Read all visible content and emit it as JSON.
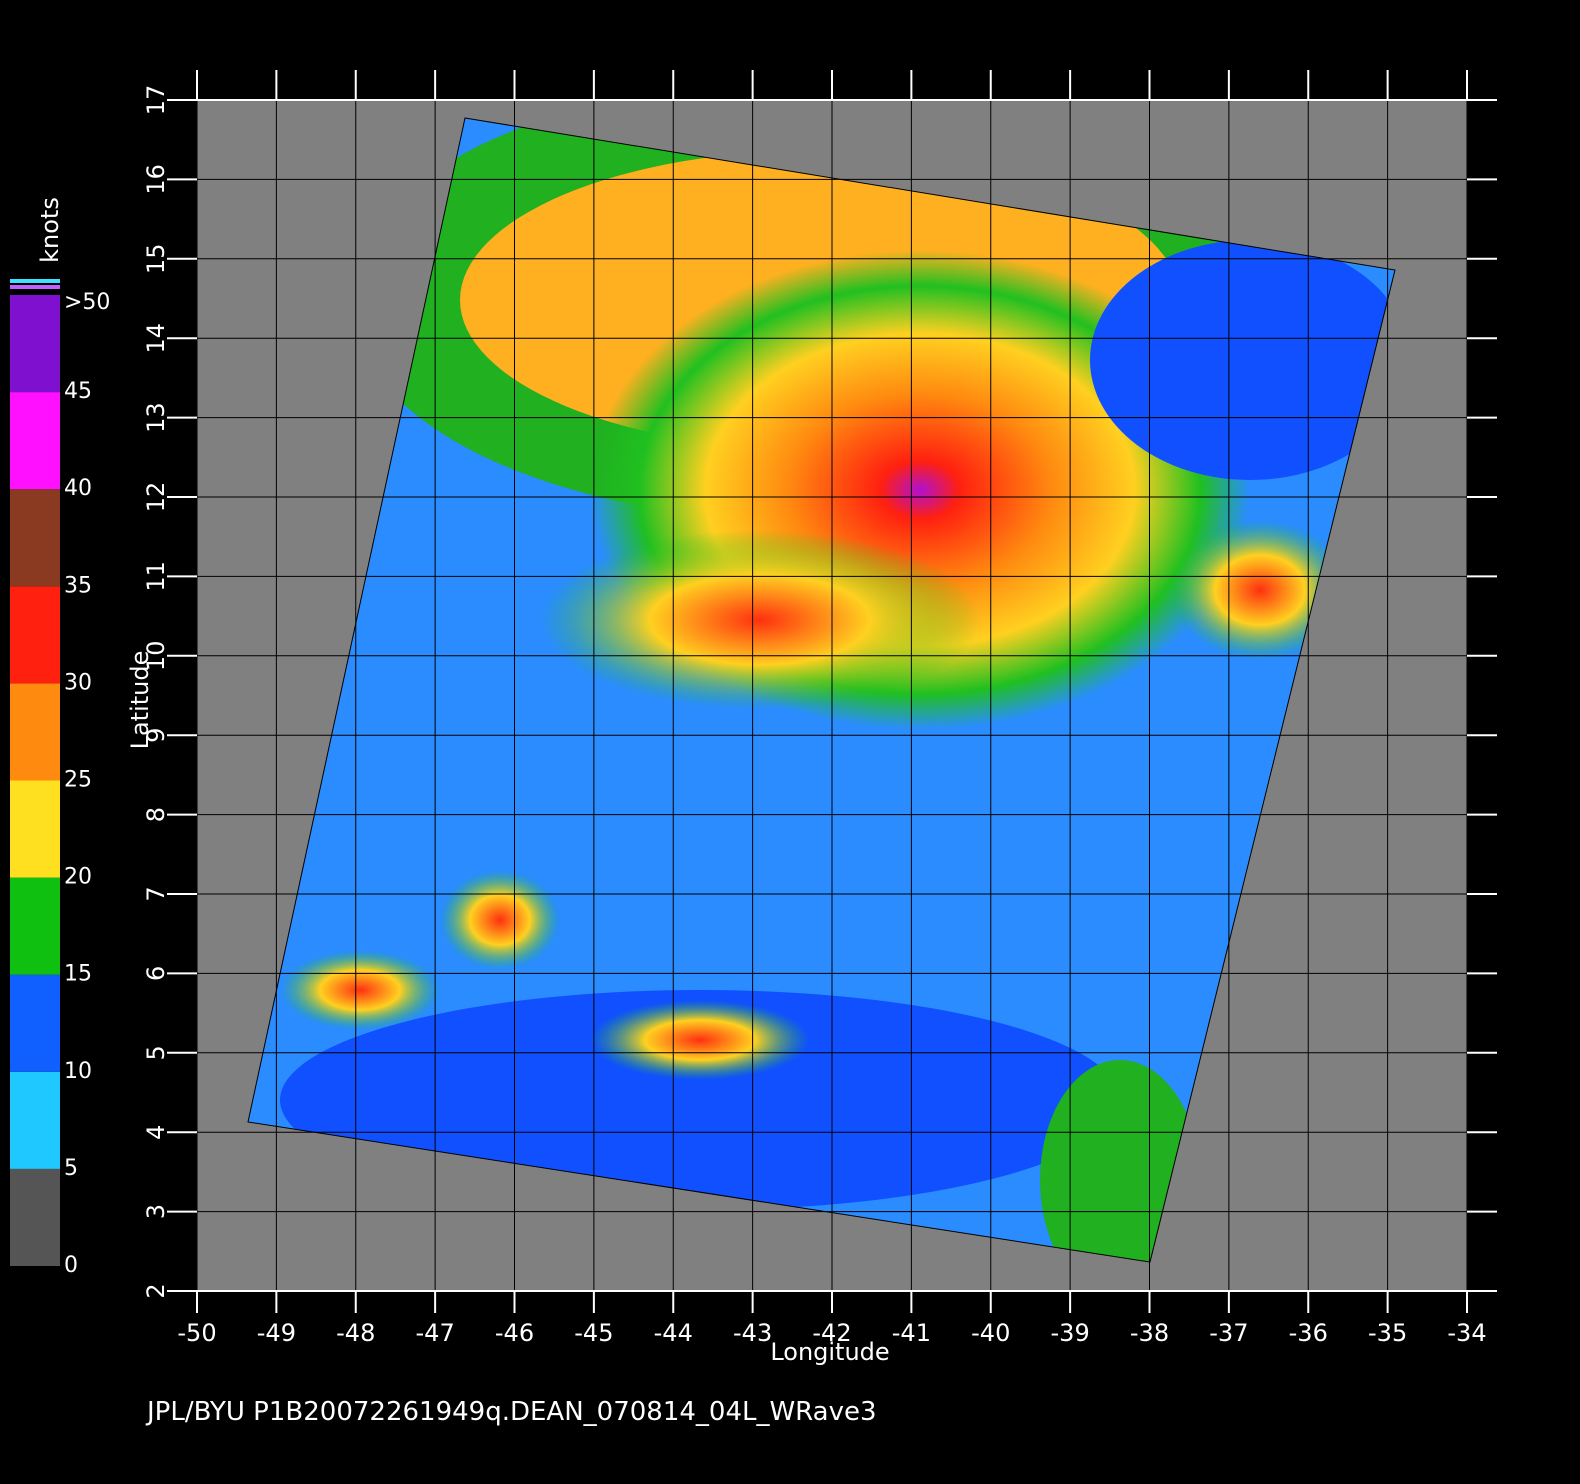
{
  "map": {
    "xlabel": "Longitude",
    "ylabel": "Latitude",
    "caption": "JPL/BYU  P1B20072261949q.DEAN_070814_04L_WRave3",
    "xlim": [
      -50,
      -34
    ],
    "ylim": [
      2,
      17
    ],
    "xticks": [
      -50,
      -49,
      -48,
      -47,
      -46,
      -45,
      -44,
      -43,
      -42,
      -41,
      -40,
      -39,
      -38,
      -37,
      -36,
      -35,
      -34
    ],
    "yticks": [
      2,
      3,
      4,
      5,
      6,
      7,
      8,
      9,
      10,
      11,
      12,
      13,
      14,
      15,
      16,
      17
    ],
    "colorbar": {
      "unit": "knots",
      "lim": [
        0,
        50
      ],
      "ticks": [
        0,
        5,
        10,
        15,
        20,
        25,
        30,
        35,
        40,
        45,
        {
          "value": 50,
          "label": ">50"
        }
      ],
      "colors": [
        "#555555",
        "#1fc8ff",
        "#1060ff",
        "#10c010",
        "#ffe020",
        "#ff8a10",
        "#ff2010",
        "#8a3a20",
        "#ff10ff",
        "#8010d0"
      ]
    }
  }
}
